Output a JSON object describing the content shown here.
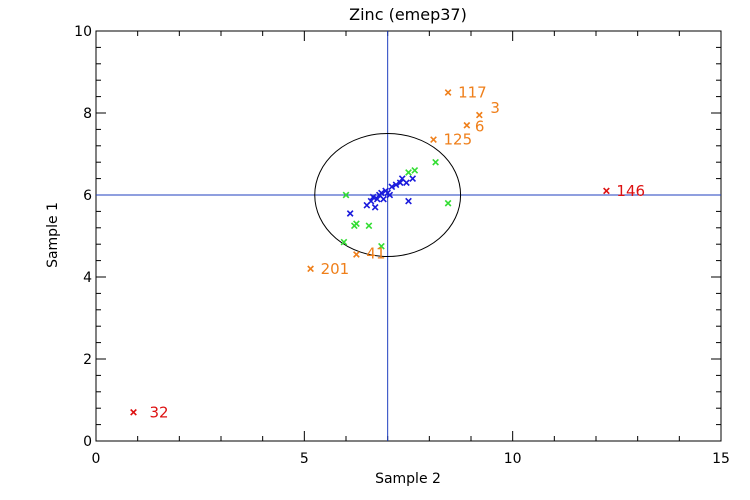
{
  "chart_data": {
    "type": "scatter",
    "title": "Zinc (emep37)",
    "xlabel": "Sample 2",
    "ylabel": "Sample 1",
    "xlim": [
      0,
      15
    ],
    "ylim": [
      0,
      10
    ],
    "xticks": [
      0,
      5,
      10,
      15
    ],
    "yticks": [
      0,
      2,
      4,
      6,
      8,
      10
    ],
    "grid": false,
    "reference_lines": {
      "x": 7,
      "y": 6,
      "color": "#1f3fbf"
    },
    "ellipse": {
      "cx": 7.0,
      "cy": 6.0,
      "rx": 1.75,
      "ry": 1.5,
      "color": "#000000"
    },
    "series": [
      {
        "color": "#1a1adc",
        "points": [
          [
            6.1,
            5.55
          ],
          [
            6.5,
            5.75
          ],
          [
            6.6,
            5.85
          ],
          [
            6.65,
            5.95
          ],
          [
            6.7,
            5.7
          ],
          [
            6.75,
            5.9
          ],
          [
            6.8,
            6.0
          ],
          [
            6.85,
            6.05
          ],
          [
            6.9,
            5.9
          ],
          [
            6.95,
            6.1
          ],
          [
            7.0,
            6.05
          ],
          [
            7.05,
            6.0
          ],
          [
            7.1,
            6.2
          ],
          [
            7.2,
            6.25
          ],
          [
            7.3,
            6.3
          ],
          [
            7.35,
            6.4
          ],
          [
            7.45,
            6.3
          ],
          [
            7.6,
            6.4
          ],
          [
            7.5,
            5.85
          ]
        ]
      },
      {
        "color": "#33dd33",
        "points": [
          [
            5.95,
            4.85
          ],
          [
            6.0,
            6.0
          ],
          [
            6.2,
            5.25
          ],
          [
            6.25,
            5.3
          ],
          [
            6.55,
            5.25
          ],
          [
            6.85,
            4.75
          ],
          [
            7.5,
            6.55
          ],
          [
            7.65,
            6.6
          ],
          [
            8.15,
            6.8
          ],
          [
            8.45,
            5.8
          ]
        ]
      },
      {
        "color": "#ef7f1a",
        "points": [
          {
            "x": 5.15,
            "y": 4.2,
            "label": "201"
          },
          {
            "x": 6.25,
            "y": 4.55,
            "label": "41"
          },
          {
            "x": 8.1,
            "y": 7.35,
            "label": "125"
          },
          {
            "x": 8.45,
            "y": 8.5,
            "label": "117"
          },
          {
            "x": 8.9,
            "y": 7.7,
            "label": "6"
          },
          {
            "x": 9.2,
            "y": 7.95,
            "label": "3"
          }
        ]
      },
      {
        "color": "#dd1111",
        "points": [
          {
            "x": 0.9,
            "y": 0.7,
            "label": "32"
          },
          {
            "x": 12.25,
            "y": 6.1,
            "label": "146"
          }
        ]
      }
    ]
  }
}
